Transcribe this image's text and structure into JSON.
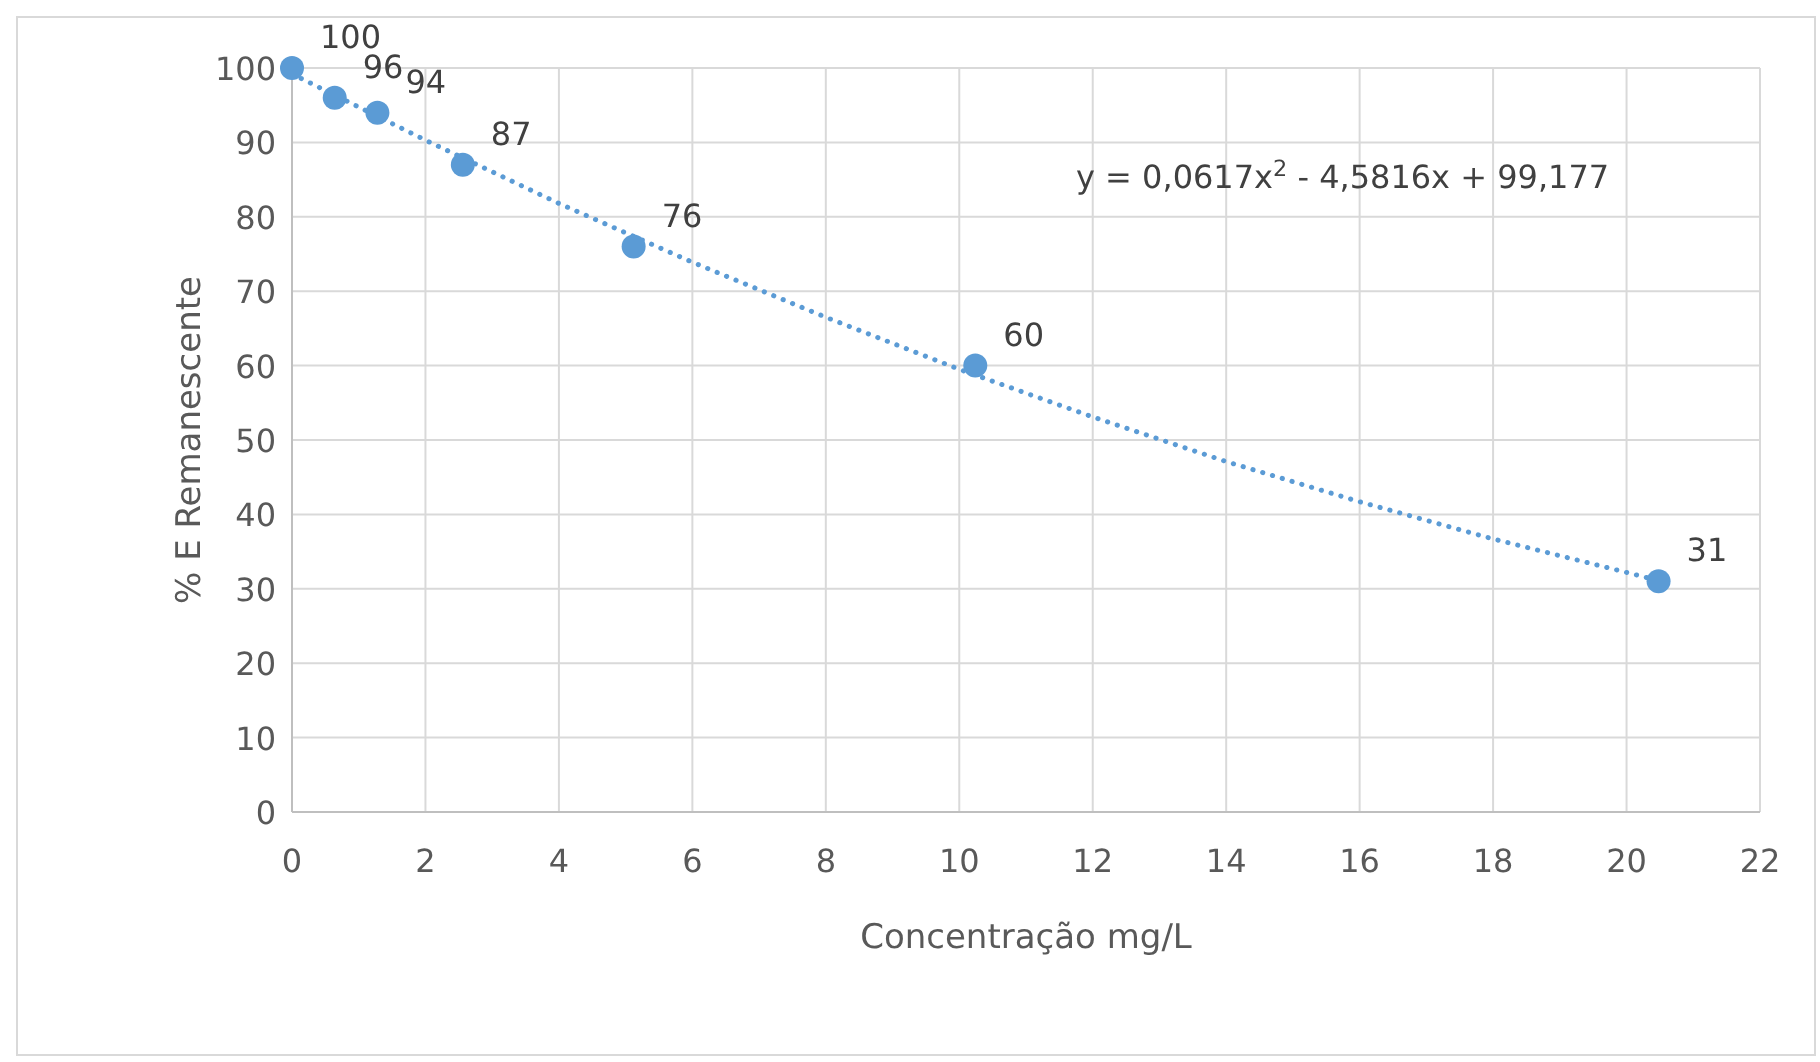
{
  "chart_data": {
    "type": "scatter",
    "xlabel": "Concentração mg/L",
    "ylabel": "% E Remanescente",
    "x": [
      0,
      0.64,
      1.28,
      2.56,
      5.12,
      10.24,
      20.48
    ],
    "series": [
      {
        "color": "#5b9bd5",
        "marker": "circle",
        "values": [
          100,
          96,
          94,
          87,
          76,
          60,
          31
        ],
        "value_labels": [
          "100",
          "96",
          "94",
          "87",
          "76",
          "60",
          "31"
        ]
      },
      {
        "type": "line",
        "color": "#5b9bd5",
        "line_style": "dotted",
        "marker": "none",
        "x": [
          0,
          2,
          4,
          6,
          8,
          10,
          12,
          14,
          16,
          18,
          20,
          20.48
        ],
        "values": [
          99.2,
          90.3,
          81.8,
          73.9,
          66.5,
          59.5,
          53.1,
          47.1,
          41.7,
          36.7,
          32.2,
          31.1
        ]
      }
    ],
    "annotations": [
      "y = 0,0617x$^{2}$ - 4,5816x + 99,177"
    ],
    "xlim": [
      0,
      22
    ],
    "xticks": [
      0,
      2,
      4,
      6,
      8,
      10,
      12,
      14,
      16,
      18,
      20,
      22
    ],
    "ylim": [
      0,
      100
    ],
    "yticks": [
      0,
      10,
      20,
      30,
      40,
      50,
      60,
      70,
      80,
      90,
      100
    ],
    "grid": true
  }
}
